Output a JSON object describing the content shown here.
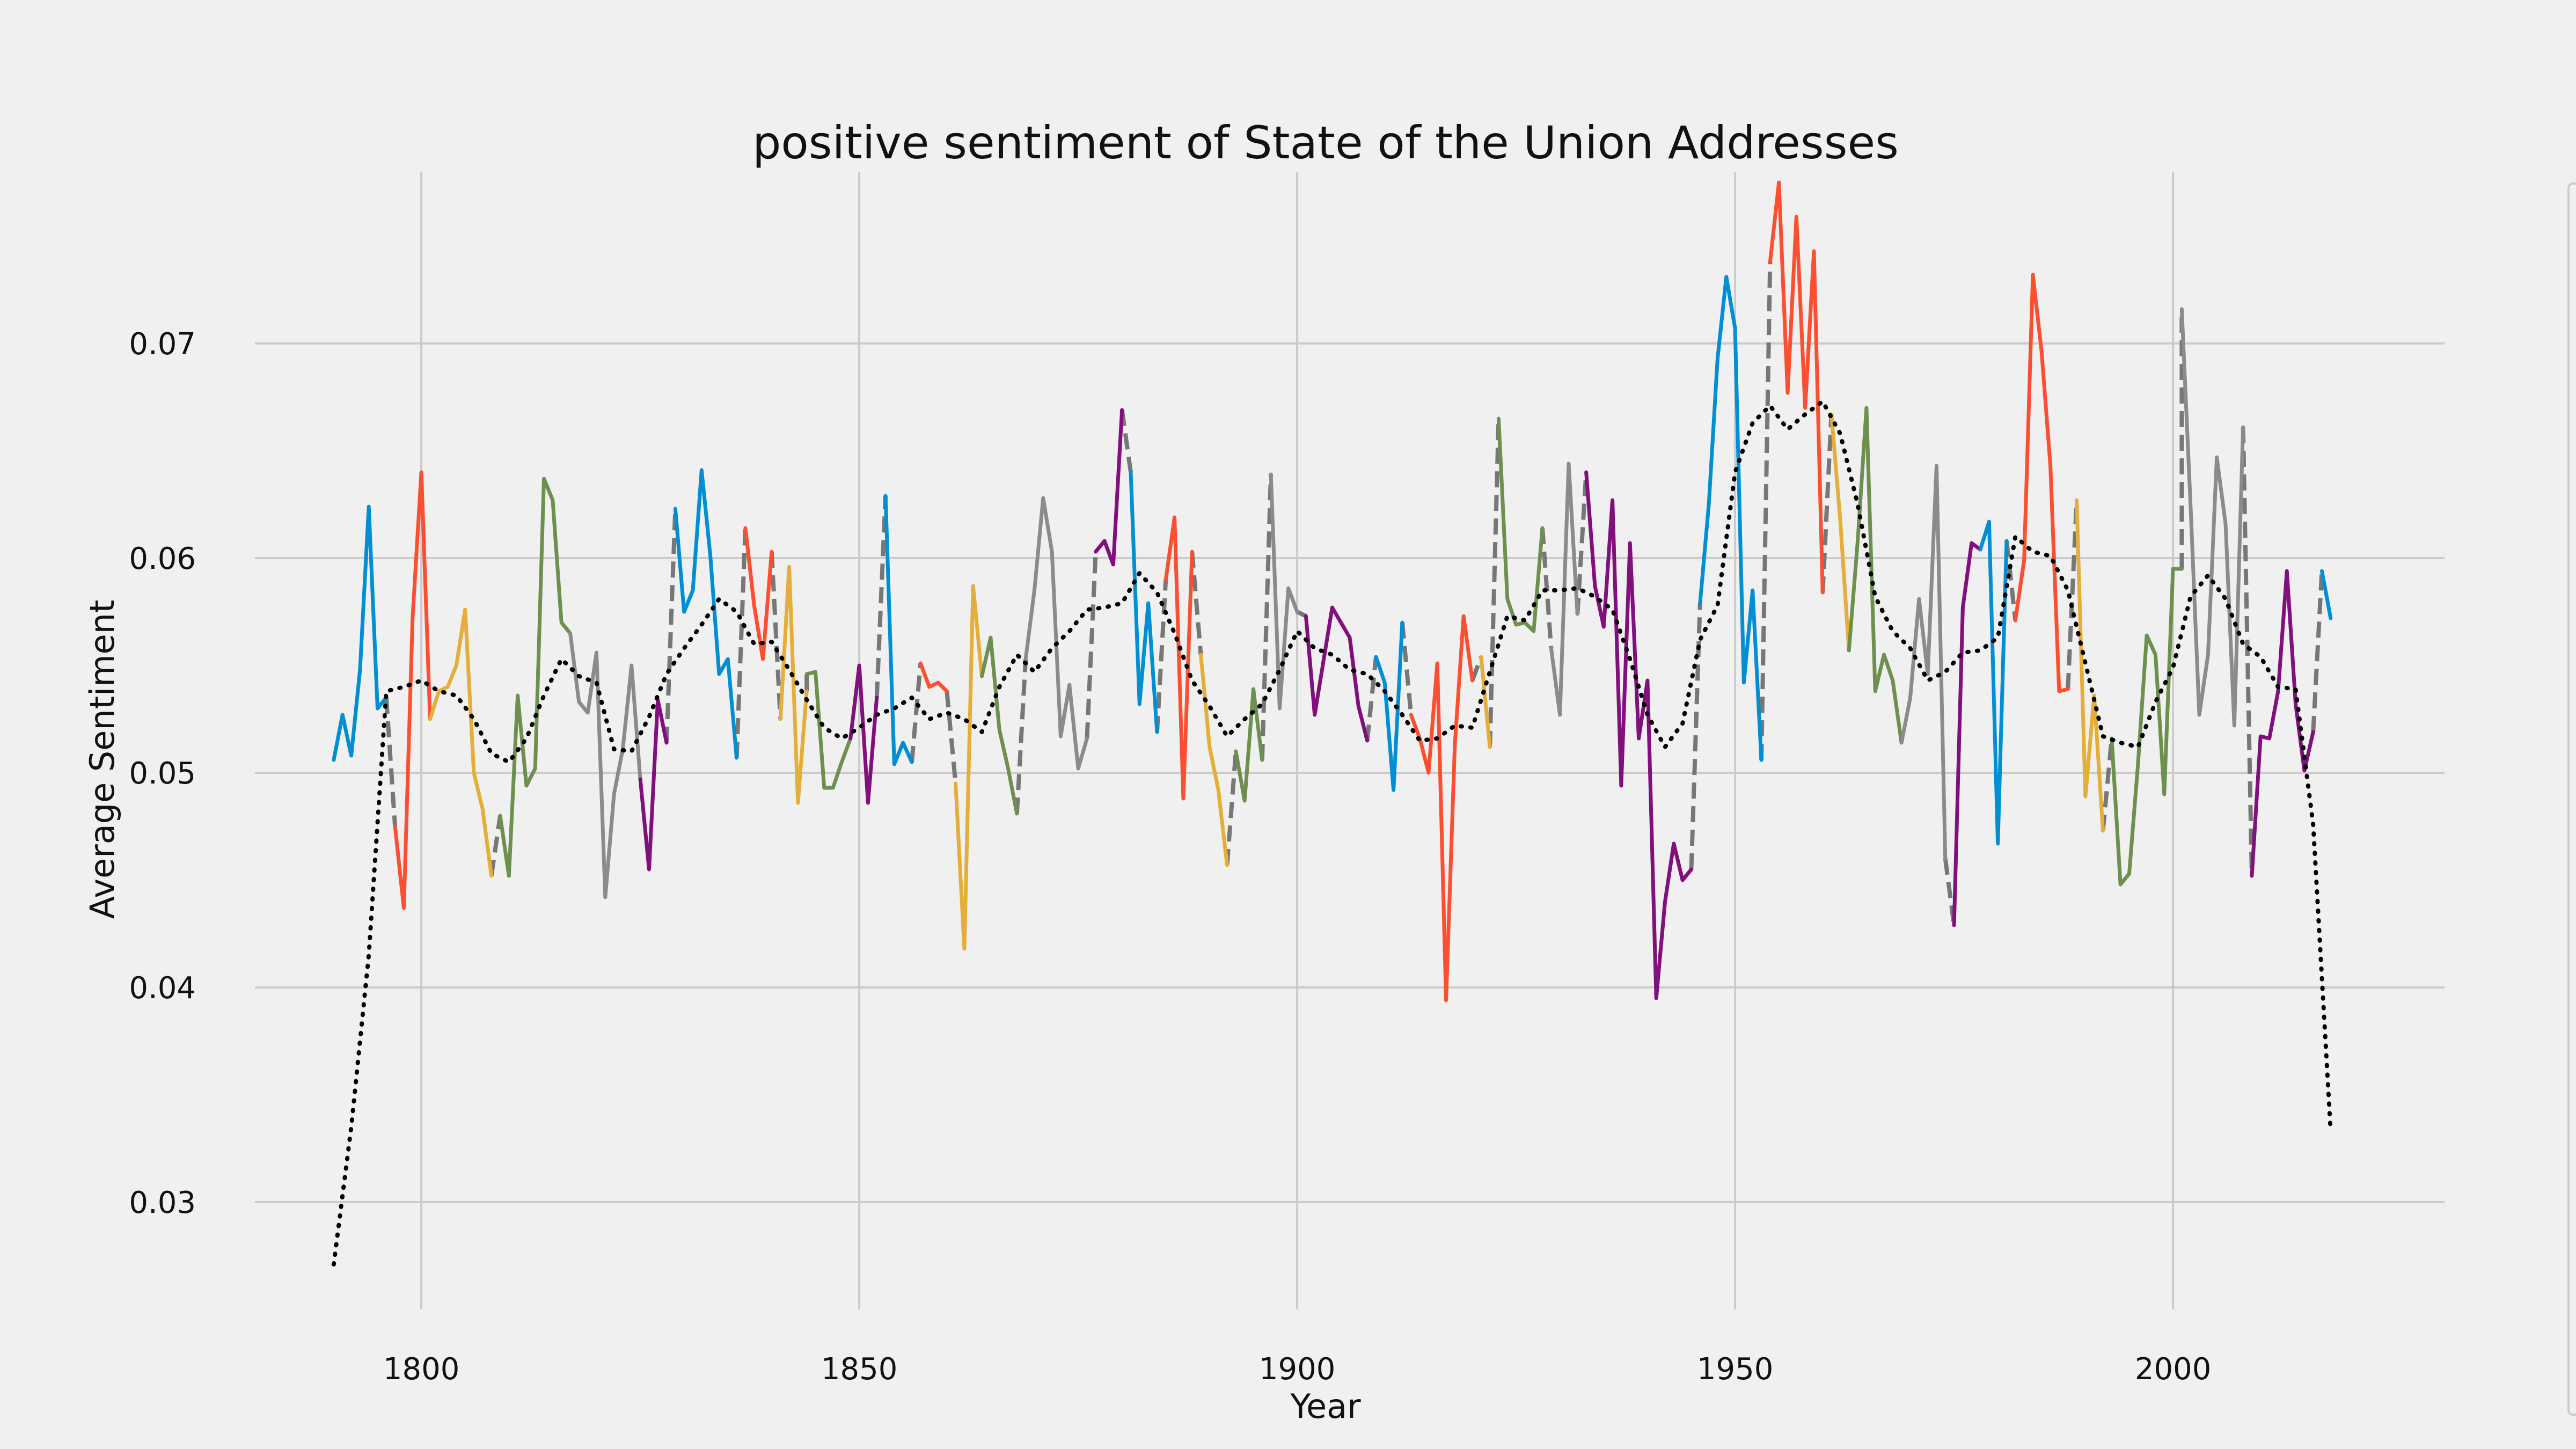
{
  "chart_data": {
    "type": "line",
    "title": "positive sentiment of State of the Union Addresses",
    "xlabel": "Year",
    "ylabel": "Average Sentiment",
    "xlim": [
      1781,
      2031
    ],
    "ylim": [
      0.025,
      0.078
    ],
    "xticks": [
      1800,
      1850,
      1900,
      1950,
      2000
    ],
    "yticks": [
      0.03,
      0.04,
      0.05,
      0.06,
      0.07
    ],
    "xtick_labels": [
      "1800",
      "1850",
      "1900",
      "1950",
      "2000"
    ],
    "ytick_labels": [
      "0.03",
      "0.04",
      "0.05",
      "0.06",
      "0.07"
    ],
    "grid": true,
    "legend": "right (cropped, entries not visible)",
    "colors": {
      "background": "#f0f0f0",
      "grid": "#cbcbcb",
      "cycle": [
        "#008fd5",
        "#fc4f30",
        "#e5ae38",
        "#6d904f",
        "#8b8b8b",
        "#810f7c"
      ],
      "transition": "#777777",
      "rolling_average": "#000000"
    },
    "segments": [
      {
        "color": "#008fd5",
        "x": [
          1790,
          1791,
          1792,
          1793,
          1794,
          1795,
          1796
        ],
        "y": [
          0.0506,
          0.0527,
          0.0508,
          0.0548,
          0.0624,
          0.053,
          0.0535
        ]
      },
      {
        "color": "#fc4f30",
        "x": [
          1797,
          1798,
          1799,
          1800,
          1801
        ],
        "y": [
          0.0475,
          0.0437,
          0.0572,
          0.064,
          0.0525
        ]
      },
      {
        "color": "#e5ae38",
        "x": [
          1801,
          1802,
          1803,
          1804,
          1805,
          1806,
          1807,
          1808
        ],
        "y": [
          0.0525,
          0.0538,
          0.054,
          0.055,
          0.0576,
          0.05,
          0.0483,
          0.0452
        ]
      },
      {
        "color": "#6d904f",
        "x": [
          1809,
          1810,
          1811,
          1812,
          1813,
          1814,
          1815,
          1816,
          1817
        ],
        "y": [
          0.048,
          0.0452,
          0.0536,
          0.0494,
          0.0502,
          0.0637,
          0.0627,
          0.057,
          0.0565
        ]
      },
      {
        "color": "#8b8b8b",
        "x": [
          1817,
          1818,
          1819,
          1820,
          1821,
          1822,
          1823,
          1824,
          1825
        ],
        "y": [
          0.0565,
          0.0533,
          0.0528,
          0.0556,
          0.0442,
          0.049,
          0.0511,
          0.055,
          0.0497
        ]
      },
      {
        "color": "#810f7c",
        "x": [
          1825,
          1826,
          1827,
          1828
        ],
        "y": [
          0.0497,
          0.0455,
          0.0534,
          0.0514
        ]
      },
      {
        "color": "#008fd5",
        "x": [
          1829,
          1830,
          1831,
          1832,
          1833,
          1834,
          1835,
          1836
        ],
        "y": [
          0.0623,
          0.0575,
          0.0585,
          0.0641,
          0.0601,
          0.0546,
          0.0553,
          0.0507
        ]
      },
      {
        "color": "#fc4f30",
        "x": [
          1837,
          1838,
          1839,
          1840
        ],
        "y": [
          0.0614,
          0.0578,
          0.0553,
          0.0603
        ]
      },
      {
        "color": "#e5ae38",
        "x": [
          1841,
          1842,
          1843,
          1844
        ],
        "y": [
          0.0525,
          0.0596,
          0.0486,
          0.0538
        ]
      },
      {
        "color": "#6d904f",
        "x": [
          1844,
          1845,
          1846,
          1847,
          1848,
          1849
        ],
        "y": [
          0.0546,
          0.0547,
          0.0493,
          0.0493,
          0.0505,
          0.0516
        ]
      },
      {
        "color": "#810f7c",
        "x": [
          1849,
          1850,
          1851,
          1852
        ],
        "y": [
          0.0516,
          0.055,
          0.0486,
          0.0535
        ]
      },
      {
        "color": "#008fd5",
        "x": [
          1853,
          1854,
          1855,
          1856
        ],
        "y": [
          0.0629,
          0.0504,
          0.0514,
          0.0505
        ]
      },
      {
        "color": "#fc4f30",
        "x": [
          1857,
          1858,
          1859,
          1860
        ],
        "y": [
          0.0551,
          0.054,
          0.0542,
          0.0538
        ]
      },
      {
        "color": "#e5ae38",
        "x": [
          1861,
          1862,
          1863,
          1864
        ],
        "y": [
          0.0495,
          0.0418,
          0.0587,
          0.0545
        ]
      },
      {
        "color": "#6d904f",
        "x": [
          1864,
          1865,
          1866,
          1867,
          1868
        ],
        "y": [
          0.0545,
          0.0563,
          0.052,
          0.0502,
          0.0481
        ]
      },
      {
        "color": "#8b8b8b",
        "x": [
          1869,
          1870,
          1871,
          1872,
          1873,
          1874,
          1875,
          1876
        ],
        "y": [
          0.0553,
          0.0585,
          0.0628,
          0.0603,
          0.0517,
          0.0541,
          0.0502,
          0.0516
        ]
      },
      {
        "color": "#810f7c",
        "x": [
          1877,
          1878,
          1879,
          1880
        ],
        "y": [
          0.0603,
          0.0608,
          0.0597,
          0.0669
        ]
      },
      {
        "color": "#008fd5",
        "x": [
          1881,
          1882,
          1883,
          1884
        ],
        "y": [
          0.064,
          0.0532,
          0.0579,
          0.0519
        ]
      },
      {
        "color": "#fc4f30",
        "x": [
          1885,
          1886,
          1887,
          1888
        ],
        "y": [
          0.059,
          0.0619,
          0.0488,
          0.0603
        ]
      },
      {
        "color": "#e5ae38",
        "x": [
          1889,
          1890,
          1891,
          1892
        ],
        "y": [
          0.0555,
          0.0512,
          0.0492,
          0.0457
        ]
      },
      {
        "color": "#6d904f",
        "x": [
          1893,
          1894,
          1895,
          1896
        ],
        "y": [
          0.051,
          0.0487,
          0.0539,
          0.0506
        ]
      },
      {
        "color": "#8b8b8b",
        "x": [
          1897,
          1898,
          1899,
          1900
        ],
        "y": [
          0.0639,
          0.053,
          0.0586,
          0.0575
        ]
      },
      {
        "color": "#810f7c",
        "x": [
          1901,
          1902,
          1903,
          1904,
          1905,
          1906,
          1907,
          1908
        ],
        "y": [
          0.0573,
          0.0527,
          0.0552,
          0.0577,
          0.057,
          0.0563,
          0.0531,
          0.0515
        ]
      },
      {
        "color": "#008fd5",
        "x": [
          1909,
          1910,
          1911,
          1912
        ],
        "y": [
          0.0554,
          0.0542,
          0.0492,
          0.057
        ]
      },
      {
        "color": "#fc4f30",
        "x": [
          1913,
          1914,
          1915,
          1916,
          1917,
          1918,
          1919,
          1920
        ],
        "y": [
          0.0527,
          0.0516,
          0.05,
          0.0551,
          0.0394,
          0.0513,
          0.0573,
          0.0543
        ]
      },
      {
        "color": "#e5ae38",
        "x": [
          1921,
          1922
        ],
        "y": [
          0.0554,
          0.0512
        ]
      },
      {
        "color": "#6d904f",
        "x": [
          1923,
          1924,
          1925,
          1926,
          1927,
          1928
        ],
        "y": [
          0.0665,
          0.0581,
          0.0569,
          0.057,
          0.0566,
          0.0614
        ]
      },
      {
        "color": "#8b8b8b",
        "x": [
          1929,
          1930,
          1931,
          1932
        ],
        "y": [
          0.0558,
          0.0527,
          0.0644,
          0.0574
        ]
      },
      {
        "color": "#810f7c",
        "x": [
          1933,
          1934,
          1935,
          1936,
          1937,
          1938,
          1939,
          1940,
          1941,
          1942,
          1943,
          1944,
          1945
        ],
        "y": [
          0.064,
          0.0587,
          0.0568,
          0.0627,
          0.0494,
          0.0607,
          0.0516,
          0.0543,
          0.0395,
          0.044,
          0.0467,
          0.045,
          0.0455
        ]
      },
      {
        "color": "#008fd5",
        "x": [
          1946,
          1947,
          1948,
          1949,
          1950,
          1951,
          1952,
          1953
        ],
        "y": [
          0.0579,
          0.0625,
          0.0693,
          0.0731,
          0.0707,
          0.0542,
          0.0585,
          0.0506
        ]
      },
      {
        "color": "#fc4f30",
        "x": [
          1954,
          1955,
          1956,
          1957,
          1958,
          1959,
          1960
        ],
        "y": [
          0.0738,
          0.0775,
          0.0677,
          0.0759,
          0.067,
          0.0743,
          0.0584
        ]
      },
      {
        "color": "#e5ae38",
        "x": [
          1961,
          1962,
          1963
        ],
        "y": [
          0.0667,
          0.0618,
          0.0557
        ]
      },
      {
        "color": "#6d904f",
        "x": [
          1963,
          1964,
          1965,
          1966,
          1967,
          1968,
          1969
        ],
        "y": [
          0.0557,
          0.0608,
          0.067,
          0.0538,
          0.0555,
          0.0543,
          0.0514
        ]
      },
      {
        "color": "#8b8b8b",
        "x": [
          1969,
          1970,
          1971,
          1972,
          1973,
          1974
        ],
        "y": [
          0.0514,
          0.0535,
          0.0581,
          0.0546,
          0.0643,
          0.046
        ]
      },
      {
        "color": "#810f7c",
        "x": [
          1975,
          1976,
          1977,
          1978
        ],
        "y": [
          0.0429,
          0.0577,
          0.0607,
          0.0604
        ]
      },
      {
        "color": "#008fd5",
        "x": [
          1978,
          1979,
          1980,
          1981
        ],
        "y": [
          0.0604,
          0.0617,
          0.0467,
          0.0608
        ]
      },
      {
        "color": "#fc4f30",
        "x": [
          1982,
          1983,
          1984,
          1985,
          1986,
          1987,
          1988
        ],
        "y": [
          0.0571,
          0.0599,
          0.0732,
          0.0696,
          0.0643,
          0.0538,
          0.0539
        ]
      },
      {
        "color": "#e5ae38",
        "x": [
          1989,
          1990,
          1991,
          1992
        ],
        "y": [
          0.0627,
          0.0489,
          0.0536,
          0.0473
        ]
      },
      {
        "color": "#6d904f",
        "x": [
          1993,
          1994,
          1995,
          1996,
          1997,
          1998,
          1999,
          2000,
          2001
        ],
        "y": [
          0.0516,
          0.0448,
          0.0453,
          0.0504,
          0.0564,
          0.0555,
          0.049,
          0.0595,
          0.0595
        ]
      },
      {
        "color": "#8b8b8b",
        "x": [
          2001,
          2002,
          2003,
          2004,
          2005,
          2006,
          2007,
          2008
        ],
        "y": [
          0.0716,
          0.0625,
          0.0527,
          0.0555,
          0.0647,
          0.0616,
          0.0522,
          0.0661
        ]
      },
      {
        "color": "#810f7c",
        "x": [
          2009,
          2010,
          2011,
          2012,
          2013,
          2014,
          2015,
          2016
        ],
        "y": [
          0.0452,
          0.0517,
          0.0516,
          0.0538,
          0.0594,
          0.0532,
          0.0501,
          0.0519
        ]
      },
      {
        "color": "#008fd5",
        "x": [
          2017,
          2018
        ],
        "y": [
          0.0594,
          0.0572
        ]
      }
    ],
    "rolling_average": {
      "x": [
        1790,
        1792,
        1794,
        1796,
        1798,
        1800,
        1802,
        1804,
        1806,
        1808,
        1810,
        1812,
        1814,
        1816,
        1818,
        1820,
        1822,
        1824,
        1826,
        1828,
        1830,
        1832,
        1834,
        1836,
        1838,
        1840,
        1842,
        1844,
        1846,
        1848,
        1850,
        1852,
        1854,
        1856,
        1858,
        1860,
        1862,
        1864,
        1866,
        1868,
        1870,
        1872,
        1874,
        1876,
        1878,
        1880,
        1882,
        1884,
        1886,
        1888,
        1890,
        1892,
        1894,
        1896,
        1898,
        1900,
        1902,
        1904,
        1906,
        1908,
        1910,
        1912,
        1914,
        1916,
        1918,
        1920,
        1922,
        1924,
        1926,
        1928,
        1930,
        1932,
        1934,
        1936,
        1938,
        1940,
        1942,
        1944,
        1946,
        1948,
        1950,
        1952,
        1954,
        1956,
        1958,
        1960,
        1962,
        1964,
        1966,
        1968,
        1970,
        1972,
        1974,
        1976,
        1978,
        1980,
        1982,
        1984,
        1986,
        1988,
        1990,
        1992,
        1994,
        1996,
        1998,
        2000,
        2002,
        2004,
        2006,
        2008,
        2010,
        2012,
        2014,
        2016,
        2018
      ],
      "y": [
        0.0271,
        0.0335,
        0.0415,
        0.0538,
        0.054,
        0.0543,
        0.0538,
        0.0536,
        0.0525,
        0.0509,
        0.0505,
        0.0516,
        0.0536,
        0.0553,
        0.0545,
        0.0542,
        0.0511,
        0.051,
        0.0526,
        0.0546,
        0.0558,
        0.0569,
        0.0581,
        0.0575,
        0.056,
        0.0561,
        0.0548,
        0.0534,
        0.0521,
        0.0516,
        0.0521,
        0.0527,
        0.053,
        0.0535,
        0.0525,
        0.0528,
        0.0525,
        0.0519,
        0.054,
        0.0555,
        0.0547,
        0.0558,
        0.0566,
        0.0576,
        0.0577,
        0.0579,
        0.0593,
        0.0584,
        0.0565,
        0.0543,
        0.0531,
        0.0517,
        0.0525,
        0.0532,
        0.0548,
        0.0566,
        0.0558,
        0.0555,
        0.0548,
        0.0546,
        0.0538,
        0.0527,
        0.0515,
        0.0516,
        0.0522,
        0.0521,
        0.0547,
        0.0573,
        0.0571,
        0.0585,
        0.0585,
        0.0586,
        0.0582,
        0.0576,
        0.0553,
        0.0527,
        0.0512,
        0.0523,
        0.0562,
        0.0578,
        0.064,
        0.0663,
        0.0671,
        0.066,
        0.0667,
        0.0673,
        0.0658,
        0.0625,
        0.0582,
        0.0566,
        0.0558,
        0.0543,
        0.0547,
        0.0556,
        0.0557,
        0.0563,
        0.061,
        0.0603,
        0.0601,
        0.0585,
        0.0551,
        0.0517,
        0.0514,
        0.0512,
        0.0533,
        0.0549,
        0.0582,
        0.0592,
        0.0581,
        0.056,
        0.0554,
        0.054,
        0.0539,
        0.0476,
        0.0333
      ]
    }
  }
}
